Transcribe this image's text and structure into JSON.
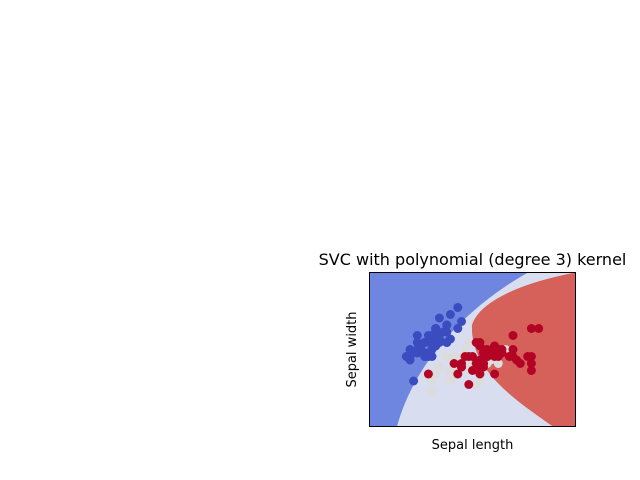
{
  "chart_data": {
    "type": "scatter",
    "title": "SVC with polynomial (degree 3) kernel",
    "xlabel": "Sepal length",
    "ylabel": "Sepal width",
    "xlim": [
      3.3,
      8.9
    ],
    "ylim": [
      1.0,
      5.4
    ],
    "xticks": [],
    "yticks": [],
    "grid": false,
    "colors": {
      "region_class_0": "#6f86e0",
      "region_class_1": "#d8def0",
      "region_class_2": "#d6605a",
      "class_0": "#3b4cc0",
      "class_1": "#dddcdc",
      "class_2": "#b40426"
    },
    "series": [
      {
        "class": 0,
        "x": [
          5.1,
          4.9,
          4.7,
          4.6,
          5.0,
          5.4,
          4.6,
          5.0,
          4.4,
          4.9,
          5.4,
          4.8,
          4.8,
          4.3,
          5.8,
          5.7,
          5.4,
          5.1,
          5.7,
          5.1,
          5.4,
          5.1,
          4.6,
          5.1,
          4.8,
          5.0,
          5.0,
          5.2,
          5.2,
          4.7,
          4.8,
          5.4,
          5.2,
          5.5,
          4.9,
          5.0,
          5.5,
          4.9,
          4.4,
          5.1,
          5.0,
          4.5,
          4.4,
          5.0,
          5.1,
          4.8,
          5.1,
          4.6,
          5.3,
          5.0
        ],
        "y": [
          3.5,
          3.0,
          3.2,
          3.1,
          3.6,
          3.9,
          3.4,
          3.4,
          2.9,
          3.1,
          3.7,
          3.4,
          3.0,
          3.0,
          4.0,
          4.4,
          3.9,
          3.5,
          3.8,
          3.8,
          3.4,
          3.7,
          3.6,
          3.3,
          3.4,
          3.0,
          3.4,
          3.5,
          3.4,
          3.2,
          3.1,
          3.4,
          4.1,
          4.2,
          3.1,
          3.2,
          3.5,
          3.6,
          3.0,
          3.4,
          3.5,
          2.3,
          3.2,
          3.5,
          3.8,
          3.0,
          3.8,
          3.2,
          3.7,
          3.3
        ]
      },
      {
        "class": 1,
        "x": [
          7.0,
          6.4,
          6.9,
          5.5,
          6.5,
          5.7,
          6.3,
          4.9,
          6.6,
          5.2,
          5.0,
          5.9,
          6.0,
          6.1,
          5.6,
          6.7,
          5.6,
          5.8,
          6.2,
          5.6,
          5.9,
          6.1,
          6.3,
          6.1,
          6.4,
          6.6,
          6.8,
          6.7,
          6.0,
          5.7,
          5.5,
          5.5,
          5.8,
          6.0,
          5.4,
          6.0,
          6.7,
          6.3,
          5.6,
          5.5,
          5.5,
          6.1,
          5.8,
          5.0,
          5.6,
          5.7,
          5.7,
          6.2,
          5.1,
          5.7
        ],
        "y": [
          3.2,
          3.2,
          3.1,
          2.3,
          2.8,
          2.8,
          3.3,
          2.4,
          2.9,
          2.7,
          2.0,
          3.0,
          2.2,
          2.9,
          2.9,
          3.1,
          3.0,
          2.7,
          2.2,
          2.5,
          3.2,
          2.8,
          2.5,
          2.8,
          2.9,
          3.0,
          2.8,
          3.0,
          2.9,
          2.6,
          2.4,
          2.4,
          2.7,
          2.7,
          3.0,
          3.4,
          3.1,
          2.3,
          3.0,
          2.5,
          2.6,
          3.0,
          2.6,
          2.3,
          2.7,
          3.0,
          2.9,
          2.9,
          2.5,
          2.8
        ]
      },
      {
        "class": 2,
        "x": [
          6.3,
          5.8,
          7.1,
          6.3,
          6.5,
          7.6,
          4.9,
          7.3,
          6.7,
          7.2,
          6.5,
          6.4,
          6.8,
          5.7,
          5.8,
          6.4,
          6.5,
          7.7,
          7.7,
          6.0,
          6.9,
          5.6,
          7.7,
          6.3,
          6.7,
          7.2,
          6.2,
          6.1,
          6.4,
          7.2,
          7.4,
          7.9,
          6.4,
          6.3,
          6.1,
          7.7,
          6.3,
          6.4,
          6.0,
          6.9,
          6.7,
          6.9,
          5.8,
          6.8,
          6.7,
          6.7,
          6.3,
          6.5,
          6.2,
          5.9
        ],
        "y": [
          3.3,
          2.7,
          3.0,
          2.9,
          3.0,
          3.0,
          2.5,
          2.9,
          2.5,
          3.6,
          3.2,
          2.7,
          3.0,
          2.5,
          2.8,
          3.2,
          3.0,
          3.8,
          2.6,
          2.2,
          3.2,
          2.8,
          2.8,
          2.7,
          3.3,
          3.2,
          2.8,
          3.0,
          2.8,
          3.0,
          2.8,
          3.8,
          2.8,
          2.8,
          2.6,
          3.0,
          3.4,
          3.1,
          3.0,
          3.1,
          3.1,
          3.1,
          2.7,
          3.2,
          3.3,
          3.0,
          2.5,
          3.0,
          3.4,
          3.0
        ]
      }
    ]
  }
}
